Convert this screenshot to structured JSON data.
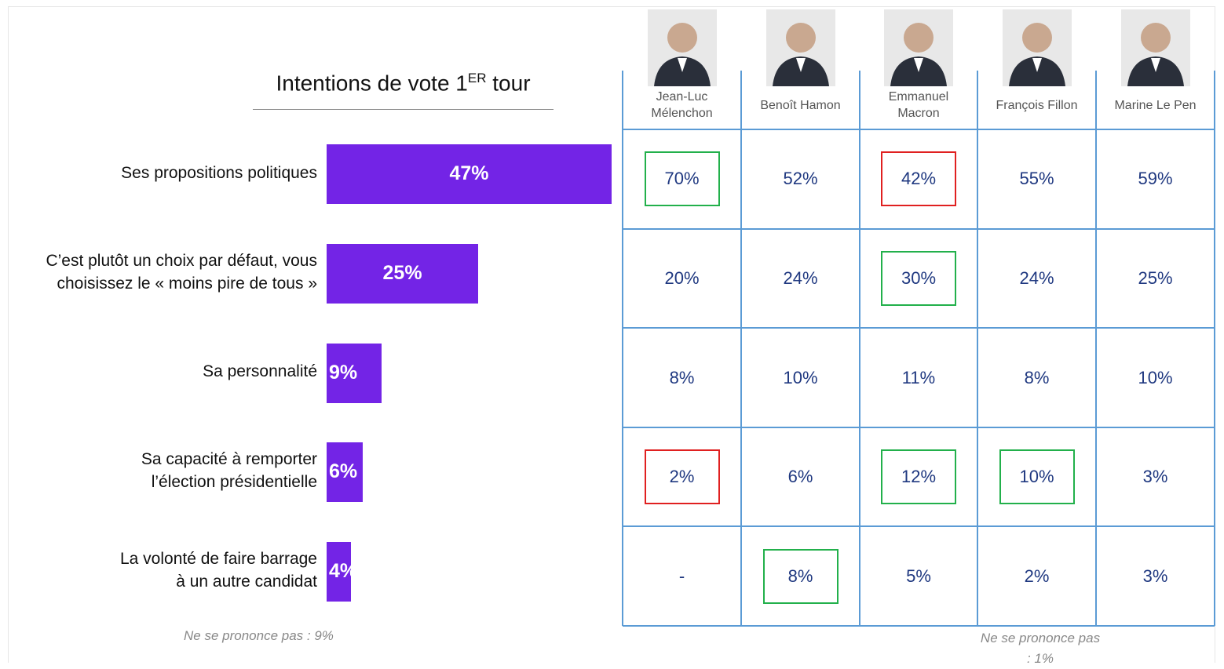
{
  "chart_data": {
    "type": "bar",
    "orientation": "horizontal",
    "title_parts": [
      "Intentions de vote 1",
      "ER",
      " tour"
    ],
    "categories": [
      "Ses propositions politiques",
      "C’est plutôt un choix par défaut, vous\nchoisissez le « moins pire de tous »",
      "Sa personnalité",
      "Sa capacité à remporter\nl’élection présidentielle",
      "La volonté de faire barrage\nà un autre candidat"
    ],
    "values": [
      47,
      25,
      9,
      6,
      4
    ],
    "value_labels": [
      "47%",
      "25%",
      "9%",
      "6%",
      "4%"
    ],
    "color": "#7324e6",
    "xlim": [
      0,
      47
    ],
    "note": "Ne se prononce pas  : 9%"
  },
  "table": {
    "columns": [
      "Jean-Luc\nMélenchon",
      "Benoît Hamon",
      "Emmanuel\nMacron",
      "François Fillon",
      "Marine Le Pen"
    ],
    "rows": [
      [
        "70%",
        "52%",
        "42%",
        "55%",
        "59%"
      ],
      [
        "20%",
        "24%",
        "30%",
        "24%",
        "25%"
      ],
      [
        "8%",
        "10%",
        "11%",
        "8%",
        "10%"
      ],
      [
        "2%",
        "6%",
        "12%",
        "10%",
        "3%"
      ],
      [
        "-",
        "8%",
        "5%",
        "2%",
        "3%"
      ]
    ],
    "highlights": [
      [
        "#22b04b",
        null,
        "#e02020",
        null,
        null
      ],
      [
        null,
        null,
        "#22b04b",
        null,
        null
      ],
      [
        null,
        null,
        null,
        null,
        null
      ],
      [
        "#e02020",
        null,
        "#22b04b",
        "#22b04b",
        null
      ],
      [
        null,
        "#22b04b",
        null,
        null,
        null
      ]
    ],
    "line_color": "#5b9bd5",
    "note": "Ne se prononce pas  : 1%"
  }
}
